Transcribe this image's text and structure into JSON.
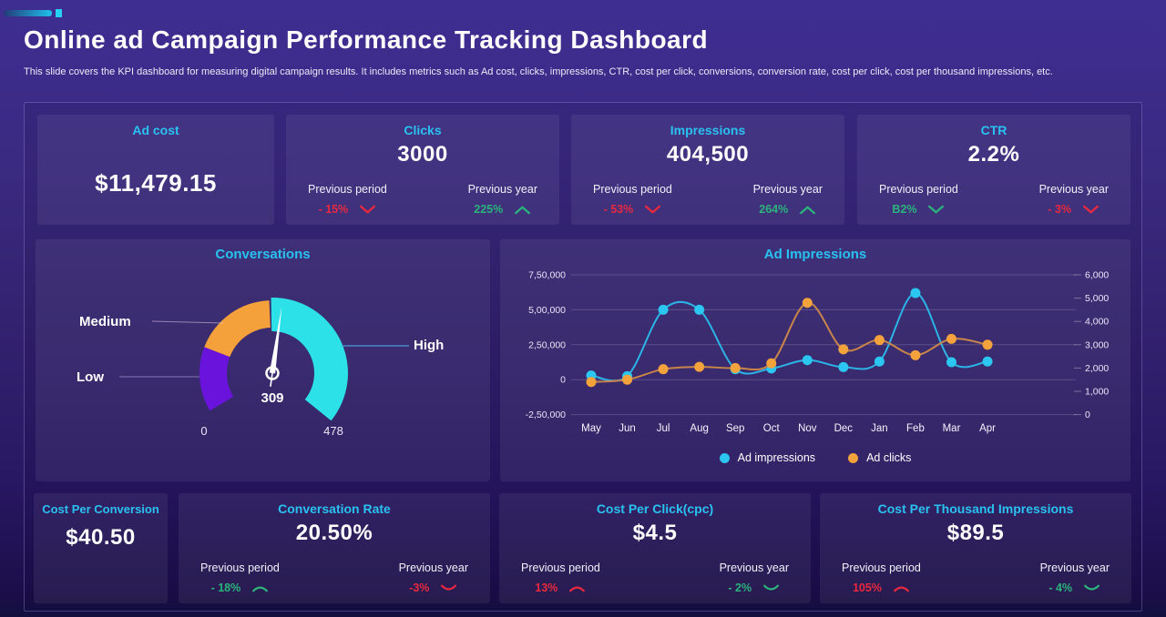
{
  "header": {
    "title": "Online ad Campaign Performance Tracking Dashboard",
    "subtitle": "This slide covers the KPI dashboard for measuring digital campaign results. It includes metrics such as Ad cost, clicks, impressions, CTR, cost per click, conversions, conversion rate, cost per click, cost per thousand impressions, etc."
  },
  "colors": {
    "accent_cyan": "#29c2f0",
    "positive_green": "#2ab47c",
    "negative_red": "#e8293f",
    "impressions_series": "#2bc7f0",
    "clicks_series": "#f3a23c"
  },
  "kpi_top": [
    {
      "title": "Ad cost",
      "value": "$11,479.15"
    },
    {
      "title": "Clicks",
      "value": "3000",
      "prev_period": {
        "label": "Previous period",
        "value": "- 15%",
        "color": "#e8293f",
        "dir": "down",
        "curved": false
      },
      "prev_year": {
        "label": "Previous year",
        "value": "225%",
        "color": "#2ab47c",
        "dir": "up",
        "curved": false
      }
    },
    {
      "title": "Impressions",
      "value": "404,500",
      "prev_period": {
        "label": "Previous period",
        "value": "- 53%",
        "color": "#e8293f",
        "dir": "down",
        "curved": false
      },
      "prev_year": {
        "label": "Previous year",
        "value": "264%",
        "color": "#2ab47c",
        "dir": "up",
        "curved": false
      }
    },
    {
      "title": "CTR",
      "value": "2.2%",
      "prev_period": {
        "label": "Previous period",
        "value": "B2%",
        "color": "#2ab47c",
        "dir": "down",
        "curved": false
      },
      "prev_year": {
        "label": "Previous year",
        "value": "- 3%",
        "color": "#e8293f",
        "dir": "down",
        "curved": false
      }
    }
  ],
  "kpi_bottom": [
    {
      "title": "Cost Per Conversion",
      "value": "$40.50"
    },
    {
      "title": "Conversation Rate",
      "value": "20.50%",
      "prev_period": {
        "label": "Previous period",
        "value": "- 18%",
        "color": "#2ab47c",
        "dir": "up",
        "curved": true
      },
      "prev_year": {
        "label": "Previous year",
        "value": "-3%",
        "color": "#e8293f",
        "dir": "down",
        "curved": true
      }
    },
    {
      "title": "Cost Per Click(cpc)",
      "value": "$4.5",
      "prev_period": {
        "label": "Previous period",
        "value": "13%",
        "color": "#e8293f",
        "dir": "up",
        "curved": true
      },
      "prev_year": {
        "label": "Previous year",
        "value": "- 2%",
        "color": "#2ab47c",
        "dir": "down",
        "curved": true
      }
    },
    {
      "title": "Cost Per Thousand Impressions",
      "value": "$89.5",
      "prev_period": {
        "label": "Previous period",
        "value": "105%",
        "color": "#e8293f",
        "dir": "up",
        "curved": true
      },
      "prev_year": {
        "label": "Previous year",
        "value": "- 4%",
        "color": "#2ab47c",
        "dir": "down",
        "curved": true
      }
    }
  ],
  "chart_data": [
    {
      "type": "gauge",
      "title": "Conversations",
      "min": 0,
      "max": 478,
      "value": 309,
      "needle_angle": 8,
      "segments": [
        {
          "label": "Low",
          "color": "#6a13dc",
          "start_angle": 239,
          "end_angle": 291
        },
        {
          "label": "Medium",
          "color": "#f4a13b",
          "start_angle": 291,
          "end_angle": 357.5
        },
        {
          "label": "High",
          "color": "#2ce2e8",
          "start_angle": 359,
          "end_angle": 489
        }
      ]
    },
    {
      "type": "line",
      "title": "Ad Impressions",
      "categories": [
        "May",
        "Jun",
        "Jul",
        "Aug",
        "Sep",
        "Oct",
        "Nov",
        "Dec",
        "Jan",
        "Feb",
        "Mar",
        "Apr"
      ],
      "series": [
        {
          "name": "Ad impressions",
          "axis": "left",
          "color": "#2bc7f0",
          "line_color": "#2bb4e6",
          "values": [
            30000,
            25000,
            500000,
            500000,
            75000,
            80000,
            140000,
            90000,
            130000,
            620000,
            125000,
            130000
          ]
        },
        {
          "name": "Ad clicks",
          "axis": "right",
          "color": "#f3a23c",
          "line_color": "#c9854a",
          "values": [
            1400,
            1500,
            1950,
            2050,
            2000,
            2200,
            4800,
            2800,
            3200,
            2550,
            3250,
            3000
          ]
        }
      ],
      "left_axis": {
        "ticks": [
          "7,50,000",
          "5,00,000",
          "2,50,000",
          "0",
          "-2,50,000"
        ],
        "values": [
          750000,
          500000,
          250000,
          0,
          -250000
        ]
      },
      "right_axis": {
        "ticks": [
          "6,000",
          "5,000",
          "4,000",
          "3,000",
          "2,000",
          "1,000",
          "0"
        ],
        "values": [
          6000,
          5000,
          4000,
          3000,
          2000,
          1000,
          0
        ]
      },
      "legend": [
        "Ad impressions",
        "Ad clicks"
      ],
      "grid": true,
      "legend_position": "bottom"
    }
  ]
}
